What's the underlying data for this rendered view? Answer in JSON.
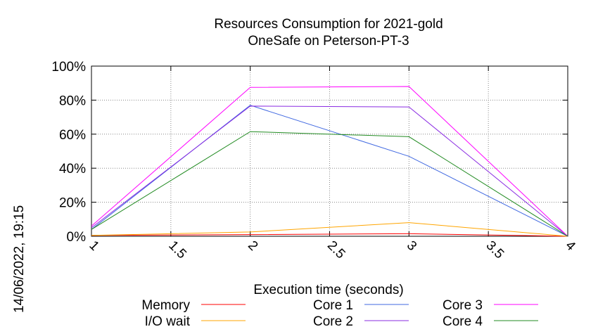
{
  "chart_data": {
    "type": "line",
    "title": "Resources Consumption for 2021-gold",
    "subtitle": "OneSafe on Peterson-PT-3",
    "xlabel": "Execution time (seconds)",
    "ylabel": "",
    "side_label": "14/06/2022, 19:15",
    "xlim": [
      1,
      4
    ],
    "ylim": [
      0,
      100
    ],
    "x_ticks": [
      "1",
      "1.5",
      "2",
      "2.5",
      "3",
      "3.5",
      "4"
    ],
    "y_ticks": [
      "0%",
      "20%",
      "40%",
      "60%",
      "80%",
      "100%"
    ],
    "grid": true,
    "legend_position": "bottom",
    "x": [
      1,
      2,
      3,
      4
    ],
    "series": [
      {
        "name": "Memory",
        "color": "#ff0000",
        "values": [
          0.5,
          1.0,
          1.5,
          0
        ]
      },
      {
        "name": "I/O wait",
        "color": "#ffa500",
        "values": [
          0.5,
          2.5,
          8.0,
          0
        ]
      },
      {
        "name": "Core 1",
        "color": "#4169e1",
        "values": [
          4.0,
          77.0,
          47.0,
          0
        ]
      },
      {
        "name": "Core 2",
        "color": "#8a2be2",
        "values": [
          5.0,
          76.5,
          76.0,
          0
        ]
      },
      {
        "name": "Core 3",
        "color": "#ff00ff",
        "values": [
          6.0,
          87.5,
          88.0,
          0
        ]
      },
      {
        "name": "Core 4",
        "color": "#228b22",
        "values": [
          4.0,
          61.5,
          58.5,
          0
        ]
      }
    ]
  }
}
